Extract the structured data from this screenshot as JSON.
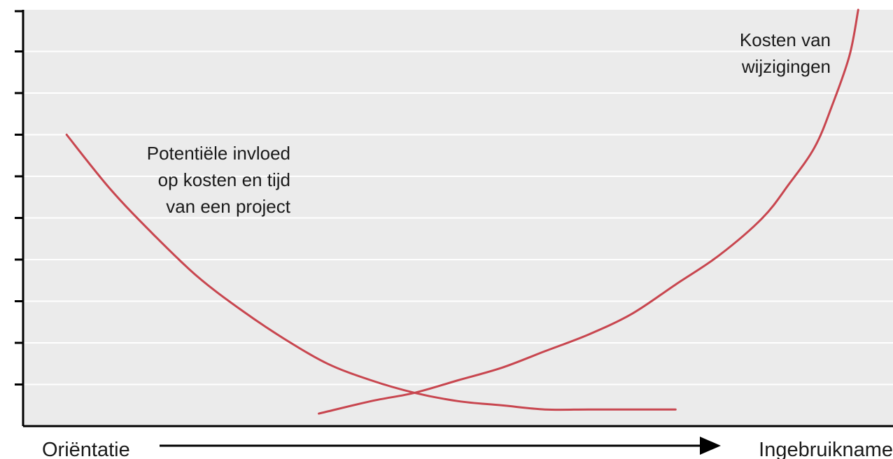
{
  "colors": {
    "background": "#ebebeb",
    "gridline": "#ffffff",
    "axis": "#000000",
    "curve": "#c8464f",
    "text": "#1a1a1a"
  },
  "chart_data": {
    "type": "line",
    "title": "",
    "xlabel": "",
    "ylabel": "",
    "grid": true,
    "xlim": [
      0,
      100
    ],
    "ylim": [
      0,
      100
    ],
    "y_tick_count": 10,
    "x_start_label": "Oriëntatie",
    "x_end_label": "Ingebruikname",
    "series": [
      {
        "name": "Potentiële invloed op kosten en tijd van een project",
        "label_lines": [
          "Potentiële invloed",
          "op kosten en tijd",
          "van een project"
        ],
        "x": [
          5,
          10,
          15,
          20,
          25,
          30,
          35,
          40,
          45,
          50,
          55,
          60,
          65,
          70,
          75
        ],
        "y": [
          70,
          57,
          46,
          36,
          28,
          21,
          15,
          11,
          8,
          6,
          5,
          4,
          4,
          4,
          4
        ]
      },
      {
        "name": "Kosten van wijzigingen",
        "label_lines": [
          "Kosten van",
          "wijzigingen"
        ],
        "x": [
          34,
          40,
          45,
          50,
          55,
          60,
          65,
          70,
          75,
          80,
          85,
          88,
          91,
          93,
          95,
          96
        ],
        "y": [
          3,
          6,
          8,
          11,
          14,
          18,
          22,
          27,
          34,
          41,
          50,
          58,
          67,
          77,
          89,
          100
        ]
      }
    ]
  }
}
